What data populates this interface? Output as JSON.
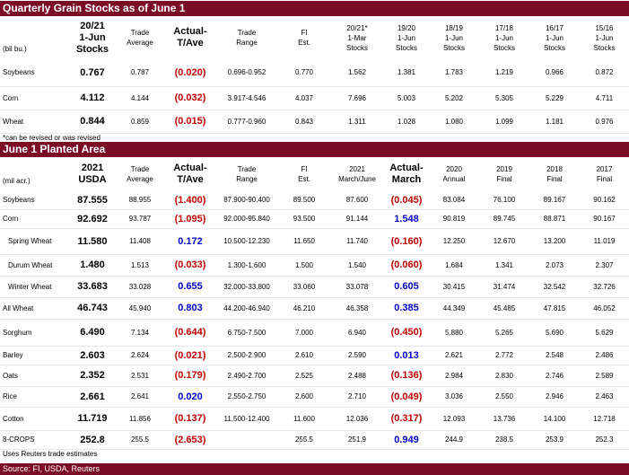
{
  "stocks": {
    "title": "Quarterly Grain Stocks as of June 1",
    "headers": [
      [
        "(bil bu.)"
      ],
      [
        "20/21",
        "1-Jun",
        "Stocks"
      ],
      [
        "Trade",
        "Average"
      ],
      [
        "Actual-",
        "T/Ave"
      ],
      [
        "Trade",
        "Range"
      ],
      [
        "FI",
        "Est."
      ],
      [
        "20/21*",
        "1-Mar",
        "Stocks"
      ],
      [
        "19/20",
        "1-Jun",
        "Stocks"
      ],
      [
        "18/19",
        "1-Jun",
        "Stocks"
      ],
      [
        "17/18",
        "1-Jun",
        "Stocks"
      ],
      [
        "16/17",
        "1-Jun",
        "Stocks"
      ],
      [
        "15/16",
        "1-Jun",
        "Stocks"
      ]
    ],
    "rows": [
      {
        "label": "Soybeans",
        "cells": [
          "0.767",
          "0.787",
          "(0.020)",
          "0.696-0.952",
          "0.770",
          "1.562",
          "1.381",
          "1.783",
          "1.219",
          "0.966",
          "0.872"
        ]
      },
      {
        "label": "Corn",
        "cells": [
          "4.112",
          "4.144",
          "(0.032)",
          "3.917-4.546",
          "4.037",
          "7.696",
          "5.003",
          "5.202",
          "5.305",
          "5.229",
          "4.711"
        ]
      },
      {
        "label": "Wheat",
        "cells": [
          "0.844",
          "0.859",
          "(0.015)",
          "0.777-0.960",
          "0.843",
          "1.311",
          "1.028",
          "1.080",
          "1.099",
          "1.181",
          "0.976"
        ]
      }
    ],
    "note": "*can be revised or was revised"
  },
  "planted": {
    "title": "June 1 Planted Area",
    "headers": [
      [
        "(mil acr.)"
      ],
      [
        "2021",
        "USDA"
      ],
      [
        "Trade",
        "Average"
      ],
      [
        "Actual-",
        "T/Ave"
      ],
      [
        "Trade",
        "Range"
      ],
      [
        "FI",
        "Est."
      ],
      [
        "2021",
        "March/June"
      ],
      [
        "Actual-",
        "March"
      ],
      [
        "2020",
        "Annual"
      ],
      [
        "2019",
        "Final"
      ],
      [
        "2018",
        "Final"
      ],
      [
        "2017",
        "Final"
      ]
    ],
    "rows": [
      {
        "label": "Soybeans",
        "cells": [
          "87.555",
          "88.955",
          "(1.400)",
          "87.900-90.400",
          "89.500",
          "87.600",
          "(0.045)",
          "83.084",
          "76.100",
          "89.167",
          "90.162"
        ]
      },
      {
        "label": "Corn",
        "cells": [
          "92.692",
          "93.787",
          "(1.095)",
          "92.000-95.840",
          "93.500",
          "91.144",
          "1.548",
          "90.819",
          "89.745",
          "88.871",
          "90.167"
        ]
      },
      {
        "label": "Spring Wheat",
        "cells": [
          "11.580",
          "11.408",
          "0.172",
          "10.500-12.230",
          "11.650",
          "11.740",
          "(0.160)",
          "12.250",
          "12.670",
          "13.200",
          "11.019"
        ]
      },
      {
        "label": "Durum Wheat",
        "cells": [
          "1.480",
          "1.513",
          "(0.033)",
          "1.300-1.600",
          "1.500",
          "1.540",
          "(0.060)",
          "1.684",
          "1.341",
          "2.073",
          "2.307"
        ]
      },
      {
        "label": "Winter Wheat",
        "cells": [
          "33.683",
          "33.028",
          "0.655",
          "32.000-33.800",
          "33.060",
          "33.078",
          "0.605",
          "30.415",
          "31.474",
          "32.542",
          "32.726"
        ]
      },
      {
        "label": "All Wheat",
        "cells": [
          "46.743",
          "45.940",
          "0.803",
          "44.200-46.940",
          "46.210",
          "46.358",
          "0.385",
          "44.349",
          "45.485",
          "47.815",
          "46.052"
        ]
      },
      {
        "label": "Sorghum",
        "cells": [
          "6.490",
          "7.134",
          "(0.644)",
          "6.750-7.500",
          "7.000",
          "6.940",
          "(0.450)",
          "5.880",
          "5.265",
          "5.690",
          "5.629"
        ]
      },
      {
        "label": "Barley",
        "cells": [
          "2.603",
          "2.624",
          "(0.021)",
          "2.500-2.900",
          "2.610",
          "2.590",
          "0.013",
          "2.621",
          "2.772",
          "2.548",
          "2.486"
        ]
      },
      {
        "label": "Oats",
        "cells": [
          "2.352",
          "2.531",
          "(0.179)",
          "2.490-2.700",
          "2.525",
          "2.488",
          "(0.136)",
          "2.984",
          "2.830",
          "2.746",
          "2.589"
        ]
      },
      {
        "label": "Rice",
        "cells": [
          "2.661",
          "2.641",
          "0.020",
          "2.550-2.750",
          "2.600",
          "2.710",
          "(0.049)",
          "3.036",
          "2.550",
          "2.946",
          "2.463"
        ]
      },
      {
        "label": "Cotton",
        "cells": [
          "11.719",
          "11.856",
          "(0.137)",
          "11.500-12.400",
          "11.600",
          "12.036",
          "(0.317)",
          "12.093",
          "13.736",
          "14.100",
          "12.718"
        ]
      },
      {
        "label": "8-CROPS",
        "cells": [
          "252.8",
          "255.5",
          "(2.653)",
          "",
          "255.5",
          "251.9",
          "0.949",
          "244.9",
          "238.5",
          "253.9",
          "252.3"
        ]
      }
    ],
    "note": "Uses Reuters trade estimates"
  },
  "source": "Source: FI, USDA, Reuters",
  "colors": {
    "header_bar": "#7a0c25",
    "negative": "#c00000",
    "positive": "#0000cc"
  }
}
